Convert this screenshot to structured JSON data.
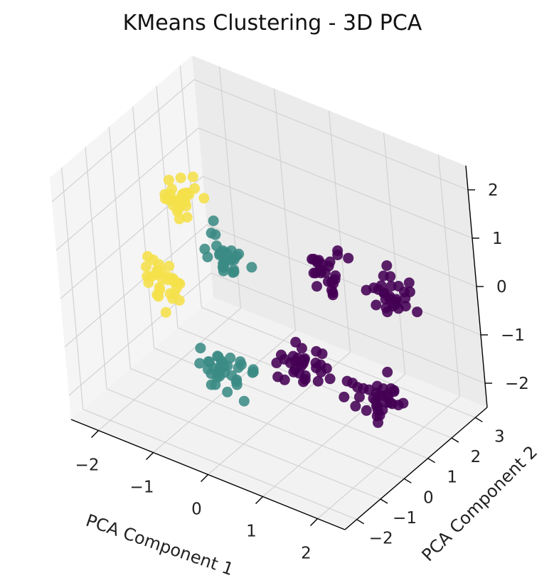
{
  "chart_data": {
    "type": "scatter",
    "title": "KMeans Clustering - 3D PCA",
    "xlabel": "PCA Component 1",
    "ylabel": "PCA Component 2",
    "zlabel": "",
    "xticks": [
      "−2",
      "−1",
      "0",
      "1",
      "2"
    ],
    "yticks": [
      "−2",
      "−1",
      "0",
      "1",
      "2",
      "3"
    ],
    "zticks": [
      "−2",
      "−1",
      "0",
      "1",
      "2"
    ],
    "xlim": [
      -2.5,
      2.5
    ],
    "ylim": [
      -2.5,
      3.5
    ],
    "zlim": [
      -2.5,
      2.5
    ],
    "grid": true,
    "colormap": "viridis",
    "cluster_colors": [
      "#440154",
      "#3b8b85",
      "#f5e04a"
    ],
    "clusters": [
      {
        "cluster": 0,
        "color": "#440154",
        "groups": [
          {
            "center": [
              1.3,
              0.3,
              1.1
            ],
            "n": 26,
            "spread": 0.28
          },
          {
            "center": [
              1.8,
              1.7,
              0.35
            ],
            "n": 28,
            "spread": 0.3
          },
          {
            "center": [
              0.75,
              0.05,
              -0.95
            ],
            "n": 32,
            "spread": 0.32
          },
          {
            "center": [
              1.55,
              1.05,
              -1.65
            ],
            "n": 34,
            "spread": 0.32
          }
        ]
      },
      {
        "cluster": 1,
        "color": "#3b8b85",
        "groups": [
          {
            "center": [
              -0.9,
              0.95,
              0.2
            ],
            "n": 28,
            "spread": 0.28
          },
          {
            "center": [
              -0.8,
              0.25,
              -1.9
            ],
            "n": 34,
            "spread": 0.32
          }
        ]
      },
      {
        "cluster": 2,
        "color": "#f5e04a",
        "groups": [
          {
            "center": [
              -1.55,
              0.6,
              1.25
            ],
            "n": 28,
            "spread": 0.28
          },
          {
            "center": [
              -1.95,
              0.45,
              -0.65
            ],
            "n": 32,
            "spread": 0.3
          }
        ]
      }
    ]
  }
}
